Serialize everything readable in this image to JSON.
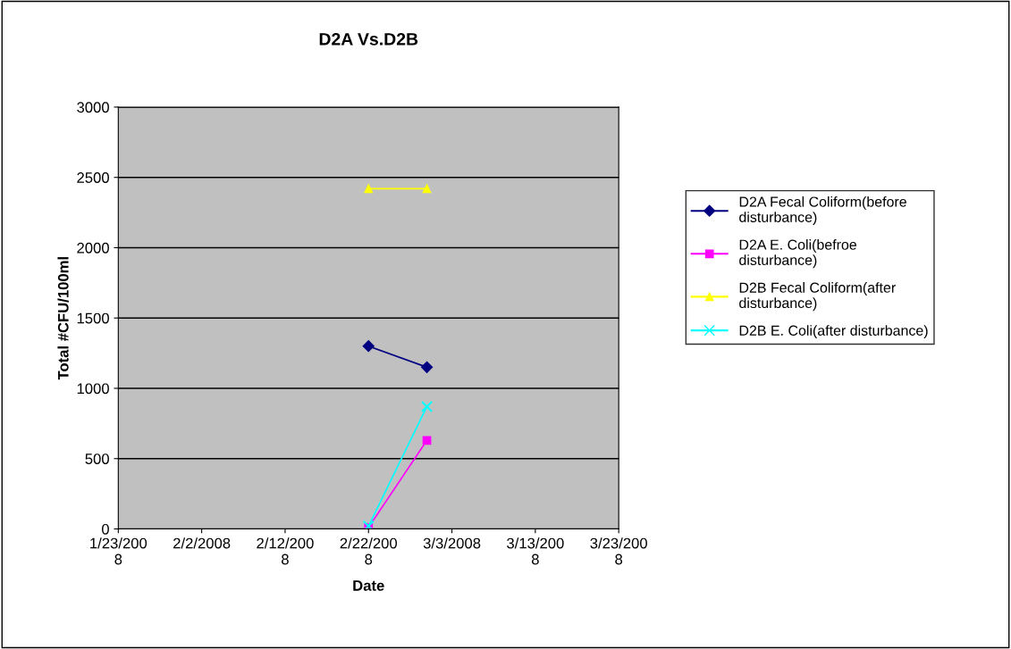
{
  "chart_data": {
    "type": "line",
    "title": "D2A Vs.D2B",
    "xlabel": "Date",
    "ylabel": "Total #CFU/100ml",
    "series": [
      {
        "name": "D2A Fecal Coliform(before disturbance)",
        "color": "#000080",
        "marker": "diamond",
        "x": [
          "2008-02-22",
          "2008-02-29"
        ],
        "values": [
          1300,
          1150
        ]
      },
      {
        "name": "D2A E. Coli(befroe disturbance)",
        "color": "#ff00ff",
        "marker": "square",
        "x": [
          "2008-02-22",
          "2008-02-29"
        ],
        "values": [
          10,
          630
        ]
      },
      {
        "name": "D2B Fecal Coliform(after disturbance)",
        "color": "#ffff00",
        "marker": "triangle",
        "x": [
          "2008-02-22",
          "2008-02-29"
        ],
        "values": [
          2420,
          2420
        ]
      },
      {
        "name": "D2B E. Coli(after disturbance)",
        "color": "#00ffff",
        "marker": "cross",
        "x": [
          "2008-02-22",
          "2008-02-29"
        ],
        "values": [
          20,
          870
        ]
      }
    ],
    "xlim": [
      "2008-01-23",
      "2008-03-23"
    ],
    "xticks": [
      {
        "value": "2008-01-23",
        "label": "1/23/2008"
      },
      {
        "value": "2008-02-02",
        "label": "2/2/2008"
      },
      {
        "value": "2008-02-12",
        "label": "2/12/2008"
      },
      {
        "value": "2008-02-22",
        "label": "2/22/2008"
      },
      {
        "value": "2008-03-03",
        "label": "3/3/2008"
      },
      {
        "value": "2008-03-13",
        "label": "3/13/2008"
      },
      {
        "value": "2008-03-23",
        "label": "3/23/2008"
      }
    ],
    "ylim": [
      0,
      3000
    ],
    "yticks": [
      0,
      500,
      1000,
      1500,
      2000,
      2500,
      3000
    ],
    "grid": "y",
    "legend": "right",
    "line_style": "solid"
  }
}
